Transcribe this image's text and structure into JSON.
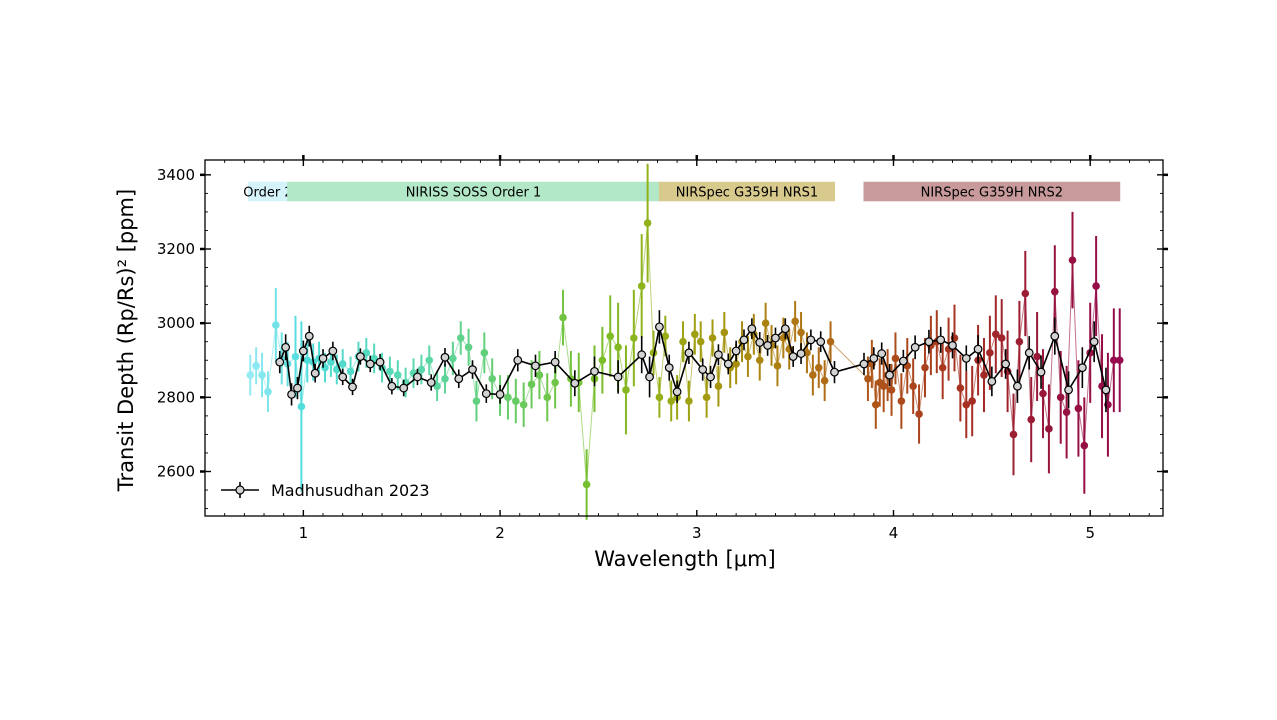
{
  "chart_data": {
    "type": "scatter",
    "title": "",
    "xlabel": "Wavelength [μm]",
    "ylabel": "Transit Depth (Rp/Rs)² [ppm]",
    "xlim": [
      0.5,
      5.37
    ],
    "ylim": [
      2480,
      3440
    ],
    "xticks": [
      1,
      2,
      3,
      4,
      5
    ],
    "yticks": [
      2600,
      2800,
      3000,
      3200,
      3400
    ],
    "grid": false,
    "legend": {
      "placement": "lower-left",
      "label": "Madhusudhan 2023"
    },
    "instrument_bands": [
      {
        "label": "Order 2",
        "x_start": 0.72,
        "x_end": 0.92,
        "color": "#d5f3fb"
      },
      {
        "label": "NIRISS SOSS Order 1",
        "x_start": 0.92,
        "x_end": 2.81,
        "color": "#b2e8c7"
      },
      {
        "label": "NIRSpec G359H NRS1",
        "x_start": 2.81,
        "x_end": 3.7,
        "color": "#d8c98d"
      },
      {
        "label": "NIRSpec G359H NRS2",
        "x_start": 3.85,
        "x_end": 5.15,
        "color": "#c89a9b"
      }
    ],
    "series": [
      {
        "name": "Madhusudhan 2023",
        "color": "#000000",
        "marker_fill": "#d3d3d3",
        "x": [
          0.88,
          0.91,
          0.94,
          0.97,
          1.0,
          1.03,
          1.06,
          1.1,
          1.15,
          1.2,
          1.25,
          1.29,
          1.34,
          1.39,
          1.45,
          1.51,
          1.58,
          1.65,
          1.72,
          1.79,
          1.86,
          1.93,
          2.0,
          2.09,
          2.18,
          2.28,
          2.38,
          2.48,
          2.6,
          2.72,
          2.76,
          2.81,
          2.86,
          2.9,
          2.96,
          3.03,
          3.07,
          3.11,
          3.16,
          3.2,
          3.24,
          3.28,
          3.32,
          3.36,
          3.4,
          3.45,
          3.49,
          3.53,
          3.58,
          3.63,
          3.7,
          3.85,
          3.9,
          3.94,
          3.98,
          4.05,
          4.11,
          4.18,
          4.24,
          4.3,
          4.37,
          4.43,
          4.5,
          4.57,
          4.63,
          4.69,
          4.75,
          4.82,
          4.89,
          4.96,
          5.02,
          5.08
        ],
        "y": [
          2895,
          2935,
          2808,
          2825,
          2925,
          2965,
          2865,
          2905,
          2925,
          2855,
          2828,
          2910,
          2890,
          2895,
          2830,
          2825,
          2855,
          2840,
          2908,
          2850,
          2875,
          2810,
          2808,
          2900,
          2885,
          2895,
          2838,
          2870,
          2855,
          2915,
          2855,
          2990,
          2880,
          2815,
          2920,
          2875,
          2855,
          2915,
          2890,
          2925,
          2955,
          2985,
          2948,
          2940,
          2960,
          2985,
          2910,
          2918,
          2955,
          2950,
          2868,
          2890,
          2905,
          2918,
          2860,
          2898,
          2935,
          2950,
          2955,
          2940,
          2905,
          2930,
          2843,
          2890,
          2830,
          2920,
          2868,
          2965,
          2820,
          2880,
          2950,
          2820
        ],
        "yerr": [
          30,
          35,
          30,
          30,
          28,
          28,
          25,
          25,
          25,
          22,
          22,
          22,
          22,
          22,
          22,
          22,
          22,
          22,
          25,
          25,
          25,
          25,
          25,
          30,
          30,
          30,
          35,
          40,
          45,
          50,
          55,
          45,
          35,
          30,
          30,
          30,
          30,
          28,
          28,
          28,
          28,
          28,
          28,
          28,
          28,
          28,
          28,
          28,
          28,
          28,
          30,
          30,
          30,
          30,
          30,
          30,
          32,
          32,
          35,
          35,
          35,
          38,
          40,
          40,
          45,
          45,
          45,
          50,
          50,
          55,
          55,
          60
        ]
      },
      {
        "name": "",
        "x": [
          0.73,
          0.76,
          0.79,
          0.82,
          0.86,
          0.89,
          0.92,
          0.96,
          0.99,
          1.02,
          1.05,
          1.08,
          1.11,
          1.14,
          1.17,
          1.2,
          1.24,
          1.28,
          1.32,
          1.36,
          1.4,
          1.44,
          1.48,
          1.52,
          1.56,
          1.6,
          1.64,
          1.68,
          1.72,
          1.76,
          1.8,
          1.84,
          1.88,
          1.92,
          1.96,
          2.0,
          2.04,
          2.08,
          2.12,
          2.16,
          2.2,
          2.24,
          2.28,
          2.32,
          2.36,
          2.4,
          2.44,
          2.48,
          2.52,
          2.56,
          2.6,
          2.64,
          2.68,
          2.72,
          2.75,
          2.78,
          2.81,
          2.84,
          2.87,
          2.9,
          2.93,
          2.96,
          2.99,
          3.02,
          3.05,
          3.08,
          3.11,
          3.14,
          3.17,
          3.2,
          3.23,
          3.26,
          3.29,
          3.32,
          3.35,
          3.38,
          3.41,
          3.44,
          3.47,
          3.5,
          3.53,
          3.56,
          3.59,
          3.62,
          3.65,
          3.68,
          3.87,
          3.89,
          3.91,
          3.93,
          3.95,
          3.97,
          3.99,
          4.01,
          4.04,
          4.07,
          4.1,
          4.13,
          4.16,
          4.19,
          4.22,
          4.25,
          4.28,
          4.31,
          4.34,
          4.37,
          4.4,
          4.43,
          4.46,
          4.49,
          4.52,
          4.55,
          4.58,
          4.61,
          4.64,
          4.67,
          4.7,
          4.73,
          4.76,
          4.79,
          4.82,
          4.85,
          4.88,
          4.91,
          4.94,
          4.97,
          5.0,
          5.03,
          5.06,
          5.09,
          5.12,
          5.15
        ],
        "y": [
          2860,
          2885,
          2860,
          2815,
          2995,
          2905,
          2890,
          2910,
          2775,
          2900,
          2895,
          2905,
          2880,
          2895,
          2875,
          2890,
          2870,
          2910,
          2920,
          2905,
          2880,
          2870,
          2860,
          2840,
          2865,
          2875,
          2900,
          2830,
          2850,
          2905,
          2960,
          2935,
          2790,
          2920,
          2850,
          2805,
          2800,
          2790,
          2780,
          2835,
          2860,
          2800,
          2840,
          3015,
          2850,
          2840,
          2565,
          2850,
          2900,
          2965,
          2935,
          2820,
          2960,
          3100,
          3270,
          2920,
          2800,
          2965,
          2790,
          2800,
          2950,
          2790,
          2970,
          2950,
          2800,
          2960,
          2830,
          2975,
          2880,
          2890,
          2950,
          2910,
          2970,
          2900,
          3000,
          2940,
          2885,
          2960,
          2930,
          3005,
          2975,
          2920,
          2860,
          2880,
          2845,
          2950,
          2850,
          2890,
          2780,
          2840,
          2830,
          2860,
          2820,
          2905,
          2790,
          2885,
          2830,
          2755,
          2880,
          2940,
          2950,
          2880,
          2930,
          2960,
          2825,
          2780,
          2790,
          2900,
          2860,
          2920,
          2970,
          2960,
          2870,
          2700,
          2950,
          3080,
          2740,
          2910,
          2810,
          2715,
          3085,
          2800,
          2760,
          3170,
          2770,
          2670,
          2920,
          3100,
          2830,
          2780,
          2900,
          2900
        ],
        "yerr": [
          55,
          50,
          60,
          55,
          100,
          70,
          60,
          110,
          230,
          60,
          50,
          45,
          40,
          40,
          40,
          40,
          40,
          40,
          40,
          40,
          40,
          40,
          40,
          40,
          40,
          40,
          40,
          40,
          40,
          45,
          45,
          50,
          55,
          55,
          55,
          55,
          60,
          60,
          60,
          65,
          65,
          65,
          70,
          75,
          75,
          80,
          95,
          90,
          90,
          110,
          120,
          120,
          130,
          140,
          160,
          60,
          55,
          55,
          55,
          60,
          55,
          55,
          55,
          55,
          55,
          50,
          55,
          55,
          55,
          55,
          55,
          55,
          55,
          55,
          55,
          55,
          55,
          55,
          55,
          55,
          55,
          55,
          55,
          55,
          55,
          55,
          60,
          65,
          65,
          65,
          70,
          70,
          70,
          70,
          75,
          75,
          75,
          80,
          80,
          80,
          85,
          85,
          85,
          90,
          90,
          90,
          95,
          95,
          100,
          100,
          105,
          105,
          110,
          110,
          110,
          115,
          115,
          120,
          120,
          120,
          125,
          125,
          125,
          130,
          130,
          130,
          135,
          135,
          140,
          140,
          140,
          140
        ]
      }
    ]
  }
}
